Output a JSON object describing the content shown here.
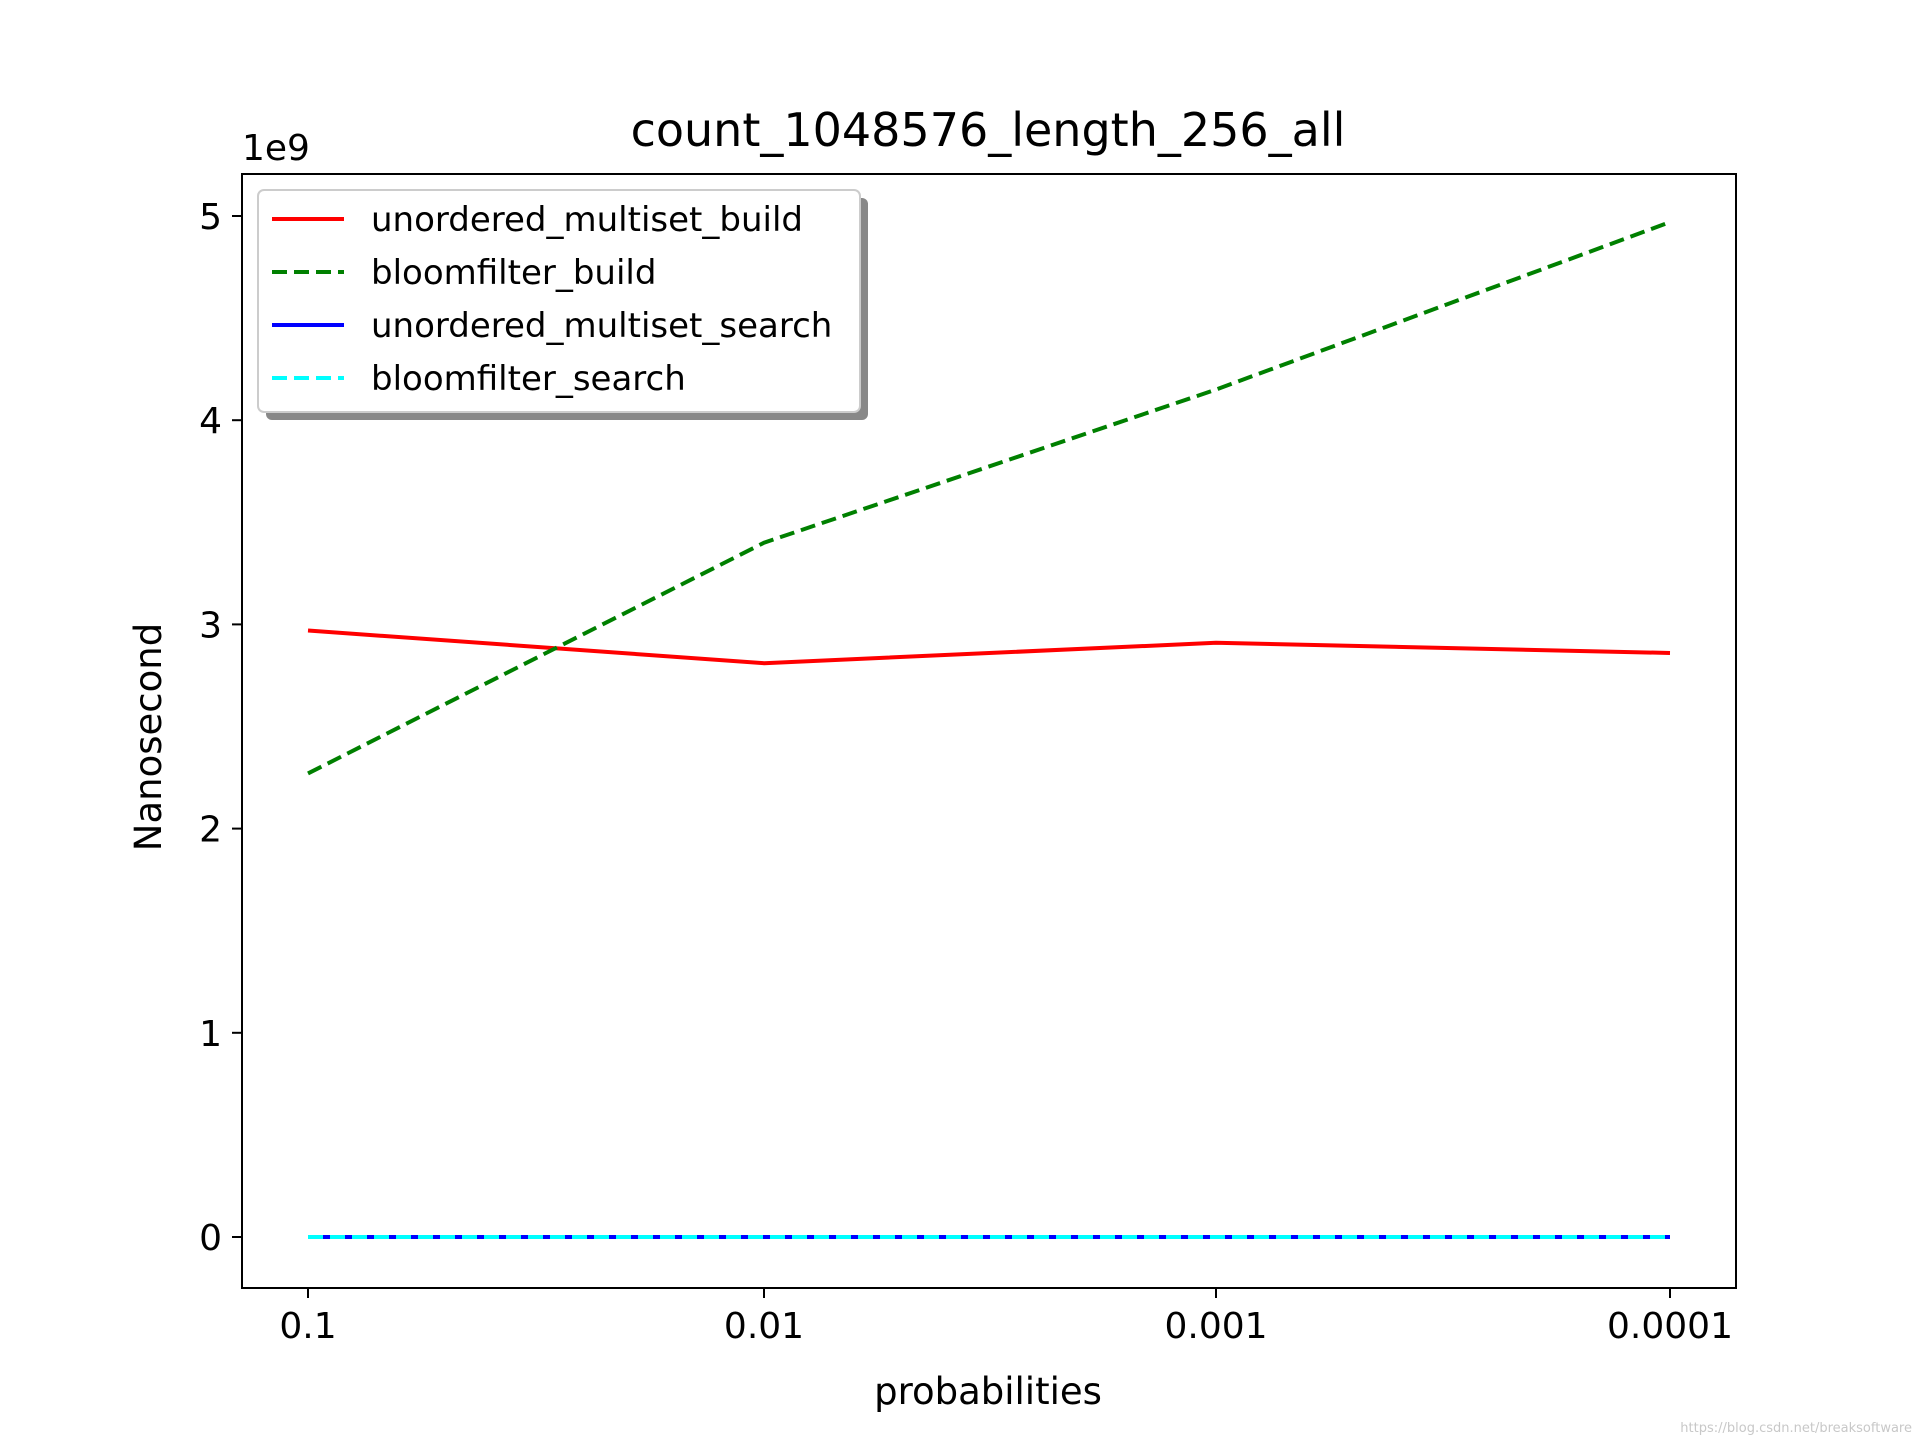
{
  "chart_data": {
    "type": "line",
    "title": "count_1048576_length_256_all",
    "xlabel": "probabilities",
    "ylabel": "Nanosecond",
    "y_scale_label": "1e9",
    "categories": [
      "0.1",
      "0.01",
      "0.001",
      "0.0001"
    ],
    "ylim": [
      -0.25,
      5.2
    ],
    "yticks": [
      0,
      1,
      2,
      3,
      4,
      5
    ],
    "grid": false,
    "legend_position": "upper left",
    "series": [
      {
        "name": "unordered_multiset_build",
        "values": [
          2.97,
          2.81,
          2.91,
          2.86
        ],
        "color": "#ff0000",
        "style": "solid"
      },
      {
        "name": "bloomfilter_build",
        "values": [
          2.27,
          3.4,
          4.15,
          4.97
        ],
        "color": "#008000",
        "style": "dashed"
      },
      {
        "name": "unordered_multiset_search",
        "values": [
          0.0,
          0.0,
          0.0,
          0.0
        ],
        "color": "#0000ff",
        "style": "solid"
      },
      {
        "name": "bloomfilter_search",
        "values": [
          0.0,
          0.0,
          0.0,
          0.0
        ],
        "color": "#00ffff",
        "style": "dashed"
      }
    ]
  },
  "watermark": "https://blog.csdn.net/breaksoftware"
}
